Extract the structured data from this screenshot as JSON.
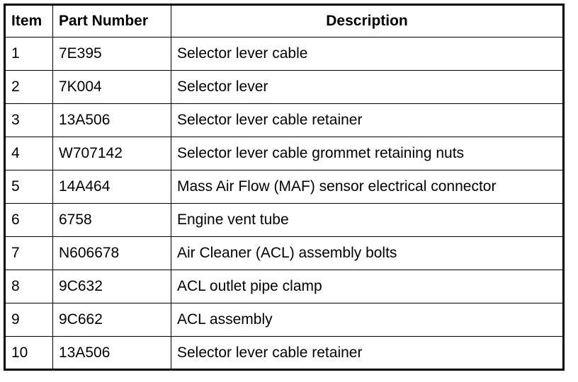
{
  "table": {
    "headers": [
      "Item",
      "Part Number",
      "Description"
    ],
    "rows": [
      [
        "1",
        "7E395",
        "Selector lever cable"
      ],
      [
        "2",
        "7K004",
        "Selector lever"
      ],
      [
        "3",
        "13A506",
        "Selector lever cable retainer"
      ],
      [
        "4",
        "W707142",
        "Selector lever cable grommet retaining nuts"
      ],
      [
        "5",
        "14A464",
        "Mass Air Flow (MAF) sensor electrical connector"
      ],
      [
        "6",
        "6758",
        "Engine vent tube"
      ],
      [
        "7",
        "N606678",
        "Air Cleaner (ACL) assembly bolts"
      ],
      [
        "8",
        "9C632",
        "ACL outlet pipe clamp"
      ],
      [
        "9",
        "9C662",
        "ACL assembly"
      ],
      [
        "10",
        "13A506",
        "Selector lever cable retainer"
      ]
    ]
  }
}
